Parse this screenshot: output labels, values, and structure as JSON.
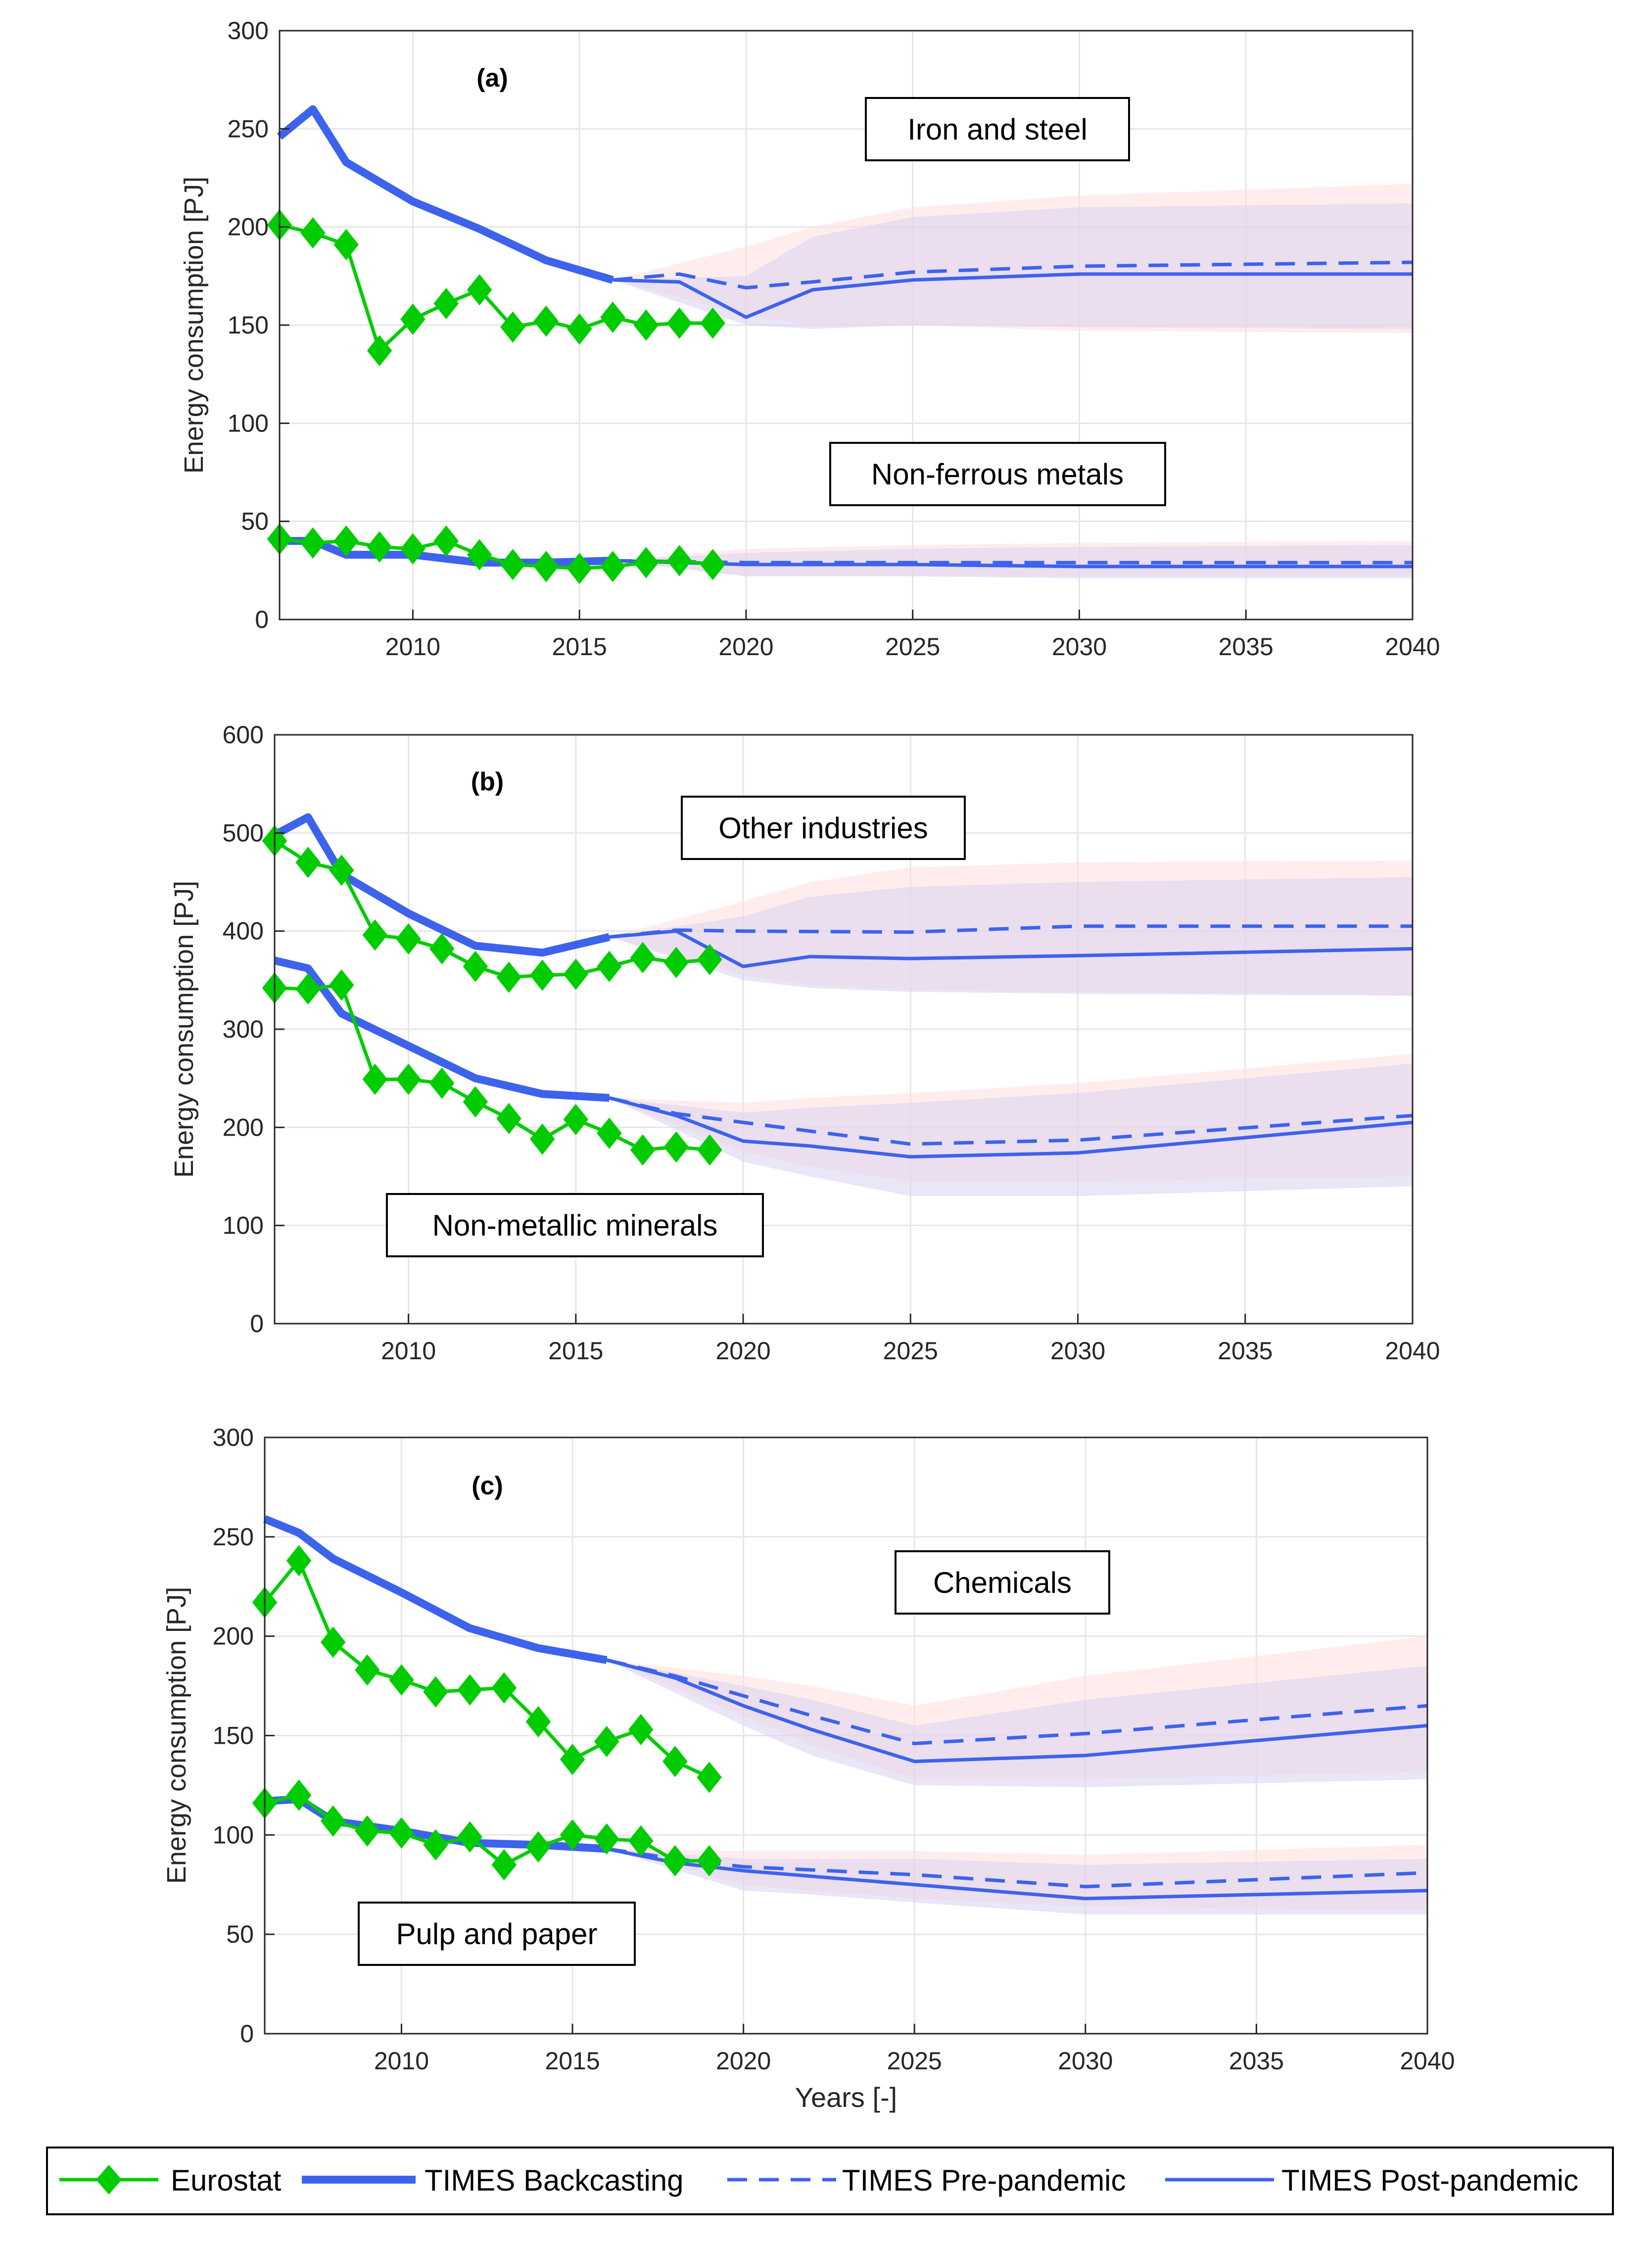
{
  "colors": {
    "eurostat": "#00cc00",
    "times": "#3d63ec",
    "band_red": "#ffdede",
    "band_blue": "#d8d2f0",
    "grid": "#e6e6e6"
  },
  "legend": {
    "eurostat": "Eurostat",
    "backcasting": "TIMES Backcasting",
    "pre": "TIMES Pre-pandemic",
    "post": "TIMES Post-pandemic"
  },
  "chart_data": [
    {
      "type": "line",
      "tag": "(a)",
      "ylabel": "Energy consumption [PJ]",
      "xlabel": "",
      "xlim": [
        2006,
        2040
      ],
      "ylim": [
        0,
        300
      ],
      "xticks": [
        2010,
        2015,
        2020,
        2025,
        2030,
        2035,
        2040
      ],
      "yticks": [
        0,
        50,
        100,
        150,
        200,
        250,
        300
      ],
      "annotations": [
        "Iron and steel",
        "Non-ferrous metals"
      ],
      "groups": [
        {
          "name": "Iron and steel",
          "eurostat": {
            "x": [
              2006,
              2007,
              2008,
              2009,
              2010,
              2011,
              2012,
              2013,
              2014,
              2015,
              2016,
              2017,
              2018,
              2019
            ],
            "y": [
              201,
              197,
              191,
              137,
              153,
              161,
              168,
              149,
              152,
              148,
              154,
              150,
              151,
              151
            ]
          },
          "backcasting": {
            "x": [
              2006,
              2007,
              2008,
              2010,
              2012,
              2014,
              2016
            ],
            "y": [
              246,
              260,
              233,
              213,
              199,
              183,
              173
            ]
          },
          "pre": {
            "x": [
              2016,
              2018,
              2020,
              2022,
              2025,
              2030,
              2040
            ],
            "y": [
              173,
              176,
              169,
              172,
              177,
              180,
              182
            ]
          },
          "post": {
            "x": [
              2016,
              2018,
              2020,
              2022,
              2025,
              2030,
              2040
            ],
            "y": [
              173,
              172,
              154,
              168,
              173,
              176,
              176
            ]
          },
          "band_pre": {
            "x": [
              2016,
              2020,
              2022,
              2025,
              2030,
              2040
            ],
            "lo": [
              173,
              155,
              150,
              150,
              147,
              146
            ],
            "hi": [
              173,
              190,
              200,
              210,
              216,
              222
            ]
          },
          "band_post": {
            "x": [
              2016,
              2020,
              2022,
              2025,
              2030,
              2040
            ],
            "lo": [
              173,
              150,
              148,
              150,
              149,
              148
            ],
            "hi": [
              173,
              175,
              195,
              205,
              210,
              212
            ]
          }
        },
        {
          "name": "Non-ferrous metals",
          "eurostat": {
            "x": [
              2006,
              2007,
              2008,
              2009,
              2010,
              2011,
              2012,
              2013,
              2014,
              2015,
              2016,
              2017,
              2018,
              2019
            ],
            "y": [
              41,
              39,
              40,
              37,
              36,
              40,
              33,
              28,
              27,
              26,
              27,
              29,
              30,
              28
            ]
          },
          "backcasting": {
            "x": [
              2006,
              2007,
              2008,
              2010,
              2012,
              2014,
              2016
            ],
            "y": [
              40,
              40,
              33,
              33,
              29,
              29,
              30
            ]
          },
          "pre": {
            "x": [
              2016,
              2020,
              2025,
              2030,
              2040
            ],
            "y": [
              30,
              29,
              29,
              29,
              29
            ]
          },
          "post": {
            "x": [
              2016,
              2020,
              2025,
              2030,
              2040
            ],
            "y": [
              30,
              28,
              28,
              27,
              27
            ]
          },
          "band_pre": {
            "x": [
              2016,
              2020,
              2025,
              2030,
              2040
            ],
            "lo": [
              30,
              22,
              22,
              22,
              22
            ],
            "hi": [
              30,
              36,
              38,
              39,
              40
            ]
          },
          "band_post": {
            "x": [
              2016,
              2020,
              2025,
              2030,
              2040
            ],
            "lo": [
              30,
              22,
              22,
              21,
              21
            ],
            "hi": [
              30,
              34,
              36,
              37,
              38
            ]
          }
        }
      ]
    },
    {
      "type": "line",
      "tag": "(b)",
      "ylabel": "Energy consumption [PJ]",
      "xlabel": "",
      "xlim": [
        2006,
        2040
      ],
      "ylim": [
        0,
        600
      ],
      "xticks": [
        2010,
        2015,
        2020,
        2025,
        2030,
        2035,
        2040
      ],
      "yticks": [
        0,
        100,
        200,
        300,
        400,
        500,
        600
      ],
      "annotations": [
        "Other industries",
        "Non-metallic minerals"
      ],
      "groups": [
        {
          "name": "Other industries",
          "eurostat": {
            "x": [
              2006,
              2007,
              2008,
              2009,
              2010,
              2011,
              2012,
              2013,
              2014,
              2015,
              2016,
              2017,
              2018,
              2019
            ],
            "y": [
              492,
              470,
              462,
              396,
              392,
              382,
              364,
              353,
              355,
              356,
              364,
              373,
              368,
              371
            ]
          },
          "backcasting": {
            "x": [
              2006,
              2007,
              2008,
              2010,
              2012,
              2014,
              2016
            ],
            "y": [
              498,
              516,
              458,
              418,
              385,
              378,
              394
            ]
          },
          "pre": {
            "x": [
              2016,
              2018,
              2020,
              2025,
              2030,
              2040
            ],
            "y": [
              394,
              401,
              400,
              399,
              405,
              405
            ]
          },
          "post": {
            "x": [
              2016,
              2018,
              2020,
              2022,
              2025,
              2030,
              2040
            ],
            "y": [
              394,
              400,
              364,
              374,
              372,
              375,
              382
            ]
          },
          "band_pre": {
            "x": [
              2016,
              2020,
              2022,
              2025,
              2030,
              2040
            ],
            "lo": [
              394,
              355,
              345,
              340,
              338,
              335
            ],
            "hi": [
              394,
              430,
              450,
              465,
              470,
              472
            ]
          },
          "band_post": {
            "x": [
              2016,
              2020,
              2022,
              2025,
              2030,
              2040
            ],
            "lo": [
              394,
              350,
              342,
              338,
              336,
              334
            ],
            "hi": [
              394,
              415,
              435,
              445,
              450,
              455
            ]
          }
        },
        {
          "name": "Non-metallic minerals",
          "eurostat": {
            "x": [
              2006,
              2007,
              2008,
              2009,
              2010,
              2011,
              2012,
              2013,
              2014,
              2015,
              2016,
              2017,
              2018,
              2019
            ],
            "y": [
              342,
              341,
              345,
              249,
              249,
              245,
              226,
              209,
              188,
              208,
              194,
              177,
              180,
              177
            ]
          },
          "backcasting": {
            "x": [
              2006,
              2007,
              2008,
              2010,
              2012,
              2014,
              2016
            ],
            "y": [
              370,
              362,
              316,
              283,
              250,
              234,
              230
            ]
          },
          "pre": {
            "x": [
              2016,
              2018,
              2020,
              2025,
              2030,
              2040
            ],
            "y": [
              230,
              214,
              205,
              183,
              187,
              212
            ]
          },
          "post": {
            "x": [
              2016,
              2018,
              2020,
              2022,
              2025,
              2030,
              2040
            ],
            "y": [
              230,
              212,
              186,
              181,
              170,
              174,
              205
            ]
          },
          "band_pre": {
            "x": [
              2016,
              2020,
              2022,
              2025,
              2030,
              2040
            ],
            "lo": [
              230,
              175,
              160,
              145,
              145,
              150
            ],
            "hi": [
              230,
              225,
              230,
              235,
              245,
              275
            ]
          },
          "band_post": {
            "x": [
              2016,
              2020,
              2022,
              2025,
              2030,
              2040
            ],
            "lo": [
              230,
              165,
              150,
              130,
              130,
              140
            ],
            "hi": [
              230,
              215,
              220,
              225,
              235,
              265
            ]
          }
        }
      ]
    },
    {
      "type": "line",
      "tag": "(c)",
      "ylabel": "Energy consumption [PJ]",
      "xlabel": "Years [-]",
      "xlim": [
        2006,
        2040
      ],
      "ylim": [
        0,
        300
      ],
      "xticks": [
        2010,
        2015,
        2020,
        2025,
        2030,
        2035,
        2040
      ],
      "yticks": [
        0,
        50,
        100,
        150,
        200,
        250,
        300
      ],
      "annotations": [
        "Chemicals",
        "Pulp and paper"
      ],
      "groups": [
        {
          "name": "Chemicals",
          "eurostat": {
            "x": [
              2006,
              2007,
              2008,
              2009,
              2010,
              2011,
              2012,
              2013,
              2014,
              2015,
              2016,
              2017,
              2018,
              2019
            ],
            "y": [
              217,
              238,
              197,
              183,
              178,
              172,
              173,
              174,
              157,
              138,
              147,
              153,
              137,
              129
            ]
          },
          "backcasting": {
            "x": [
              2006,
              2007,
              2008,
              2010,
              2012,
              2014,
              2016
            ],
            "y": [
              259,
              252,
              239,
              222,
              204,
              194,
              188
            ]
          },
          "pre": {
            "x": [
              2016,
              2018,
              2020,
              2022,
              2025,
              2030,
              2040
            ],
            "y": [
              188,
              180,
              170,
              160,
              146,
              151,
              165
            ]
          },
          "post": {
            "x": [
              2016,
              2018,
              2020,
              2022,
              2025,
              2030,
              2040
            ],
            "y": [
              188,
              179,
              165,
              153,
              137,
              140,
              155
            ]
          },
          "band_pre": {
            "x": [
              2016,
              2020,
              2022,
              2025,
              2030,
              2040
            ],
            "lo": [
              188,
              160,
              145,
              128,
              128,
              132
            ],
            "hi": [
              188,
              180,
              175,
              165,
              180,
              200
            ]
          },
          "band_post": {
            "x": [
              2016,
              2020,
              2022,
              2025,
              2030,
              2040
            ],
            "lo": [
              188,
              155,
              140,
              125,
              124,
              128
            ],
            "hi": [
              188,
              175,
              168,
              155,
              168,
              185
            ]
          }
        },
        {
          "name": "Pulp and paper",
          "eurostat": {
            "x": [
              2006,
              2007,
              2008,
              2009,
              2010,
              2011,
              2012,
              2013,
              2014,
              2015,
              2016,
              2017,
              2018,
              2019
            ],
            "y": [
              116,
              120,
              107,
              102,
              101,
              95,
              99,
              85,
              94,
              100,
              98,
              97,
              87,
              87
            ]
          },
          "backcasting": {
            "x": [
              2006,
              2007,
              2008,
              2010,
              2012,
              2014,
              2016
            ],
            "y": [
              117,
              118,
              107,
              102,
              96,
              95,
              93
            ]
          },
          "pre": {
            "x": [
              2016,
              2018,
              2020,
              2025,
              2030,
              2040
            ],
            "y": [
              93,
              88,
              84,
              80,
              74,
              81
            ]
          },
          "post": {
            "x": [
              2016,
              2018,
              2020,
              2025,
              2030,
              2040
            ],
            "y": [
              93,
              86,
              82,
              75,
              68,
              72
            ]
          },
          "band_pre": {
            "x": [
              2016,
              2020,
              2022,
              2025,
              2030,
              2040
            ],
            "lo": [
              93,
              75,
              72,
              68,
              64,
              62
            ],
            "hi": [
              93,
              92,
              92,
              92,
              90,
              95
            ]
          },
          "band_post": {
            "x": [
              2016,
              2020,
              2022,
              2025,
              2030,
              2040
            ],
            "lo": [
              93,
              72,
              70,
              66,
              60,
              60
            ],
            "hi": [
              93,
              88,
              88,
              88,
              85,
              88
            ]
          }
        }
      ]
    }
  ]
}
